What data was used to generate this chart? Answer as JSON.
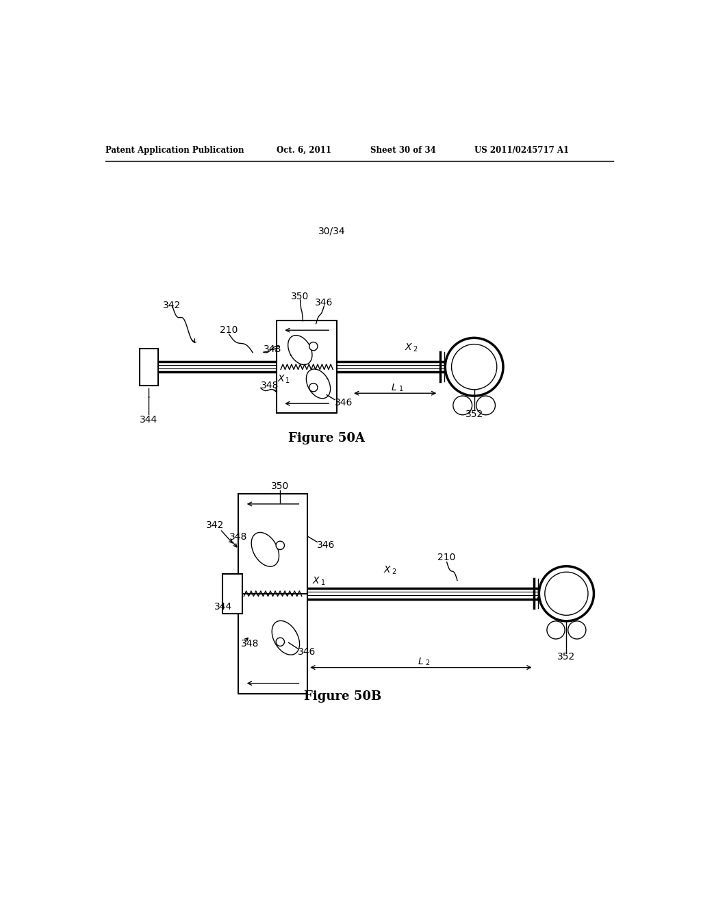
{
  "bg_color": "#ffffff",
  "title_header": "Patent Application Publication",
  "title_date": "Oct. 6, 2011",
  "title_sheet": "Sheet 30 of 34",
  "title_patent": "US 2011/0245717 A1",
  "sheet_num": "30/34",
  "fig_a_caption": "Figure 50A",
  "fig_b_caption": "Figure 50B"
}
